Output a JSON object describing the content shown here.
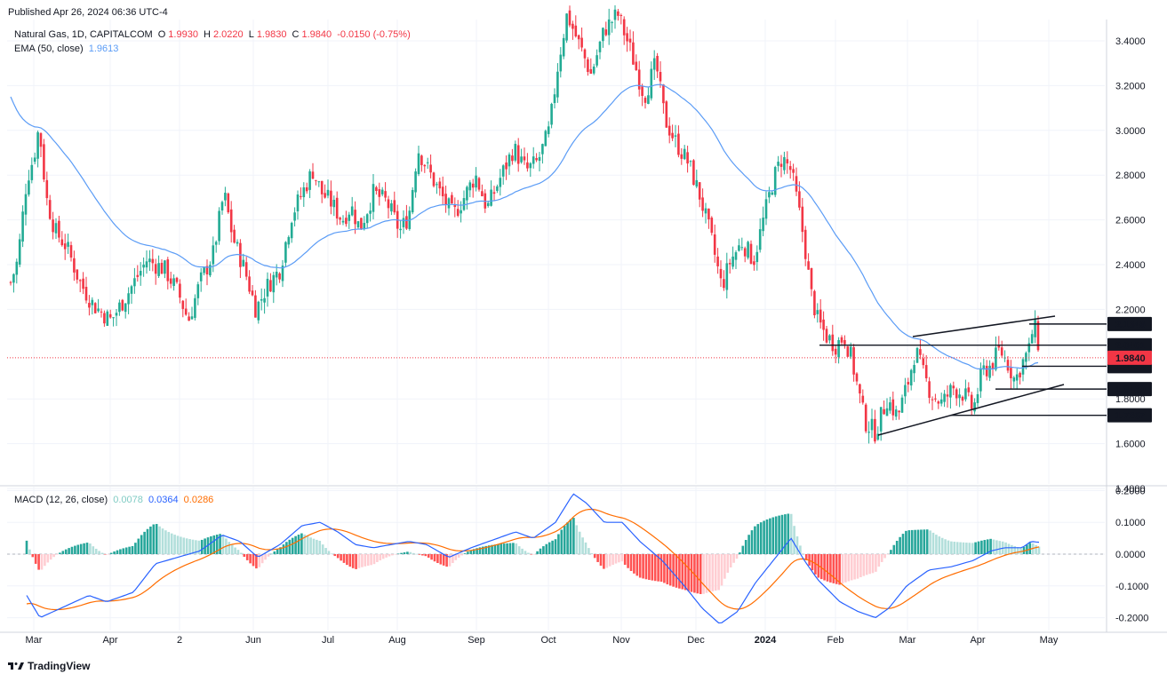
{
  "published": "Published Apr 26, 2024 06:36 UTC-4",
  "header": {
    "symbol": "Natural Gas, 1D, CAPITALCOM",
    "open_label": "O",
    "open": "1.9930",
    "high_label": "H",
    "high": "2.0220",
    "low_label": "L",
    "low": "1.9830",
    "close_label": "C",
    "close": "1.9840",
    "change": "-0.0150 (-0.75%)",
    "ema_label": "EMA (50, close)",
    "ema_value": "1.9613",
    "macd_label": "MACD (12, 26, close)",
    "macd_hist": "0.0078",
    "macd_line": "0.0364",
    "macd_signal": "0.0286"
  },
  "footer": {
    "brand": "TradingView"
  },
  "colors": {
    "up": "#22ab94",
    "down": "#f23645",
    "ema": "#5b9cf6",
    "macd": "#2962ff",
    "signal": "#ff6d00",
    "hist_up_strong": "#26a69a",
    "hist_up_weak": "#b2dfdb",
    "hist_down_strong": "#ff5252",
    "hist_down_weak": "#ffcdd2"
  },
  "chart_data": [
    {
      "type": "candlestick",
      "title": "Natural Gas, 1D, CAPITALCOM",
      "x_ticks": [
        "Mar",
        "Apr",
        "2",
        "Jun",
        "Jul",
        "Aug",
        "Sep",
        "Oct",
        "Nov",
        "Dec",
        "2024",
        "Feb",
        "Mar",
        "Apr",
        "May"
      ],
      "y_ticks": [
        "3.4000",
        "3.2000",
        "3.0000",
        "2.8000",
        "2.6000",
        "2.4000",
        "2.2000",
        "1.8000",
        "1.6000",
        "1.4000"
      ],
      "ylim": [
        1.4,
        3.5
      ],
      "current_price": "1.9840",
      "levels": [
        {
          "label": "2.1346",
          "value": 2.1346
        },
        {
          "label": "2.0401",
          "value": 2.0401
        },
        {
          "label": "1.9459",
          "value": 1.9459
        },
        {
          "label": "1.8439",
          "value": 1.8439
        },
        {
          "label": "1.7267",
          "value": 1.7267
        }
      ],
      "key_closes": [
        {
          "x": "Mar",
          "y": 2.32
        },
        {
          "x": "Early Mar",
          "y": 3.0
        },
        {
          "x": "Apr",
          "y": 2.1
        },
        {
          "x": "Jun",
          "y": 2.2
        },
        {
          "x": "Jul",
          "y": 2.8
        },
        {
          "x": "Aug",
          "y": 2.55
        },
        {
          "x": "Sep",
          "y": 2.65
        },
        {
          "x": "Oct",
          "y": 3.4
        },
        {
          "x": "Nov",
          "y": 3.3
        },
        {
          "x": "Dec",
          "y": 2.3
        },
        {
          "x": "2024",
          "y": 2.9
        },
        {
          "x": "Feb",
          "y": 1.62
        },
        {
          "x": "Mar",
          "y": 1.85
        },
        {
          "x": "Apr",
          "y": 1.84
        },
        {
          "x": "Apr 26",
          "y": 1.984
        }
      ],
      "ema50_label": "EMA (50, close)",
      "ema50_last": 1.9613
    },
    {
      "type": "line",
      "title": "MACD (12, 26, close)",
      "y_ticks": [
        "0.2000",
        "0.1000",
        "0.0000",
        "-0.1000",
        "-0.2000"
      ],
      "ylim": [
        -0.22,
        0.2
      ],
      "series": [
        {
          "name": "MACD",
          "last": 0.0364
        },
        {
          "name": "Signal",
          "last": 0.0286
        },
        {
          "name": "Histogram",
          "last": 0.0078
        }
      ]
    }
  ]
}
